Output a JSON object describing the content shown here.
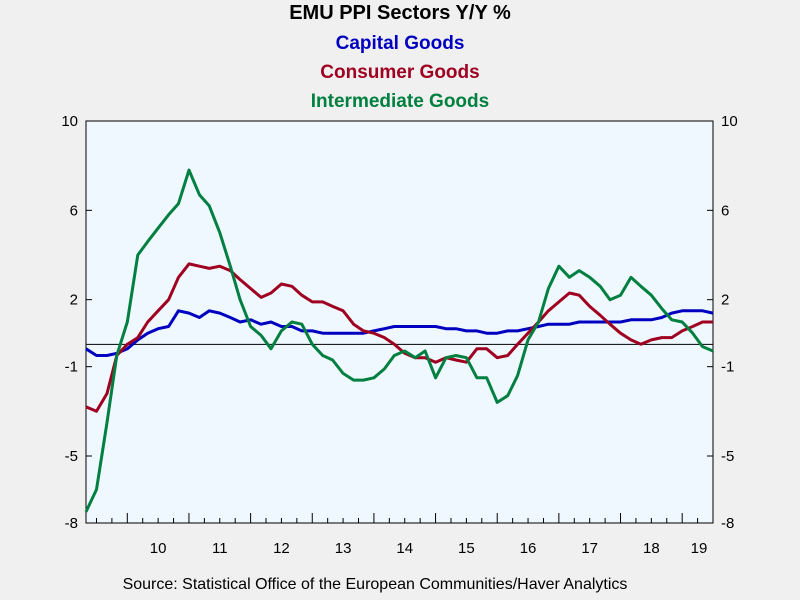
{
  "chart_data": {
    "type": "line",
    "title": "EMU PPI Sectors Y/Y %",
    "xlabel": "",
    "ylabel": "",
    "ylim": [
      -8,
      10
    ],
    "xlim": [
      2009.33,
      2019.5
    ],
    "y_ticks": [
      10,
      6,
      2,
      -1,
      -5,
      -8
    ],
    "x_tick_labels": [
      "10",
      "11",
      "12",
      "13",
      "14",
      "15",
      "16",
      "17",
      "18",
      "19"
    ],
    "x_tick_centers": [
      2010.5,
      2011.5,
      2012.5,
      2013.5,
      2014.5,
      2015.5,
      2016.5,
      2017.5,
      2018.5,
      2019.5
    ],
    "zero_line": 0,
    "grid": false,
    "series": [
      {
        "name": "Capital Goods",
        "color": "#0000c0",
        "x": [
          2009.33,
          2009.5,
          2009.67,
          2009.83,
          2010.0,
          2010.17,
          2010.33,
          2010.5,
          2010.67,
          2010.83,
          2011.0,
          2011.17,
          2011.33,
          2011.5,
          2011.67,
          2011.83,
          2012.0,
          2012.17,
          2012.33,
          2012.5,
          2012.67,
          2012.83,
          2013.0,
          2013.17,
          2013.33,
          2013.5,
          2013.67,
          2013.83,
          2014.0,
          2014.17,
          2014.33,
          2014.5,
          2014.67,
          2014.83,
          2015.0,
          2015.17,
          2015.33,
          2015.5,
          2015.67,
          2015.83,
          2016.0,
          2016.17,
          2016.33,
          2016.5,
          2016.67,
          2016.83,
          2017.0,
          2017.17,
          2017.33,
          2017.5,
          2017.67,
          2017.83,
          2018.0,
          2018.17,
          2018.33,
          2018.5,
          2018.67,
          2018.83,
          2019.0,
          2019.17,
          2019.33,
          2019.5
        ],
        "values": [
          -0.2,
          -0.5,
          -0.5,
          -0.4,
          -0.2,
          0.2,
          0.5,
          0.7,
          0.8,
          1.5,
          1.4,
          1.2,
          1.5,
          1.4,
          1.2,
          1.0,
          1.1,
          0.9,
          1.0,
          0.8,
          0.8,
          0.6,
          0.6,
          0.5,
          0.5,
          0.5,
          0.5,
          0.5,
          0.6,
          0.7,
          0.8,
          0.8,
          0.8,
          0.8,
          0.8,
          0.7,
          0.7,
          0.6,
          0.6,
          0.5,
          0.5,
          0.6,
          0.6,
          0.7,
          0.8,
          0.9,
          0.9,
          0.9,
          1.0,
          1.0,
          1.0,
          1.0,
          1.0,
          1.1,
          1.1,
          1.1,
          1.2,
          1.4,
          1.5,
          1.5,
          1.5,
          1.4
        ]
      },
      {
        "name": "Consumer Goods",
        "color": "#a00020",
        "x": [
          2009.33,
          2009.5,
          2009.67,
          2009.83,
          2010.0,
          2010.17,
          2010.33,
          2010.5,
          2010.67,
          2010.83,
          2011.0,
          2011.17,
          2011.33,
          2011.5,
          2011.67,
          2011.83,
          2012.0,
          2012.17,
          2012.33,
          2012.5,
          2012.67,
          2012.83,
          2013.0,
          2013.17,
          2013.33,
          2013.5,
          2013.67,
          2013.83,
          2014.0,
          2014.17,
          2014.33,
          2014.5,
          2014.67,
          2014.83,
          2015.0,
          2015.17,
          2015.33,
          2015.5,
          2015.67,
          2015.83,
          2016.0,
          2016.17,
          2016.33,
          2016.5,
          2016.67,
          2016.83,
          2017.0,
          2017.17,
          2017.33,
          2017.5,
          2017.67,
          2017.83,
          2018.0,
          2018.17,
          2018.33,
          2018.5,
          2018.67,
          2018.83,
          2019.0,
          2019.17,
          2019.33,
          2019.5
        ],
        "values": [
          -2.8,
          -3.0,
          -2.2,
          -0.5,
          0.0,
          0.3,
          1.0,
          1.5,
          2.0,
          3.0,
          3.6,
          3.5,
          3.4,
          3.5,
          3.3,
          2.9,
          2.5,
          2.1,
          2.3,
          2.7,
          2.6,
          2.2,
          1.9,
          1.9,
          1.7,
          1.5,
          0.9,
          0.6,
          0.5,
          0.3,
          0.0,
          -0.4,
          -0.6,
          -0.6,
          -0.8,
          -0.6,
          -0.7,
          -0.8,
          -0.2,
          -0.2,
          -0.6,
          -0.5,
          0.0,
          0.5,
          1.0,
          1.5,
          1.9,
          2.3,
          2.2,
          1.7,
          1.3,
          0.9,
          0.5,
          0.2,
          0.0,
          0.2,
          0.3,
          0.3,
          0.6,
          0.8,
          1.0,
          1.0
        ]
      },
      {
        "name": "Intermediate Goods",
        "color": "#008040",
        "x": [
          2009.33,
          2009.5,
          2009.67,
          2009.83,
          2010.0,
          2010.17,
          2010.33,
          2010.5,
          2010.67,
          2010.83,
          2011.0,
          2011.17,
          2011.33,
          2011.5,
          2011.67,
          2011.83,
          2012.0,
          2012.17,
          2012.33,
          2012.5,
          2012.67,
          2012.83,
          2013.0,
          2013.17,
          2013.33,
          2013.5,
          2013.67,
          2013.83,
          2014.0,
          2014.17,
          2014.33,
          2014.5,
          2014.67,
          2014.83,
          2015.0,
          2015.17,
          2015.33,
          2015.5,
          2015.67,
          2015.83,
          2016.0,
          2016.17,
          2016.33,
          2016.5,
          2016.67,
          2016.83,
          2017.0,
          2017.17,
          2017.33,
          2017.5,
          2017.67,
          2017.83,
          2018.0,
          2018.17,
          2018.33,
          2018.5,
          2018.67,
          2018.83,
          2019.0,
          2019.17,
          2019.33,
          2019.5
        ],
        "values": [
          -7.5,
          -6.5,
          -3.5,
          -0.5,
          1.0,
          4.0,
          4.6,
          5.2,
          5.8,
          6.3,
          7.8,
          6.7,
          6.2,
          5.0,
          3.5,
          2.0,
          0.8,
          0.4,
          -0.2,
          0.6,
          1.0,
          0.9,
          0.0,
          -0.5,
          -0.7,
          -1.3,
          -1.6,
          -1.6,
          -1.5,
          -1.1,
          -0.5,
          -0.3,
          -0.6,
          -0.3,
          -1.5,
          -0.6,
          -0.5,
          -0.6,
          -1.5,
          -1.5,
          -2.6,
          -2.3,
          -1.4,
          0.2,
          1.0,
          2.5,
          3.5,
          3.0,
          3.3,
          3.0,
          2.6,
          2.0,
          2.2,
          3.0,
          2.6,
          2.2,
          1.6,
          1.1,
          1.0,
          0.5,
          -0.1,
          -0.3
        ]
      }
    ]
  }
}
